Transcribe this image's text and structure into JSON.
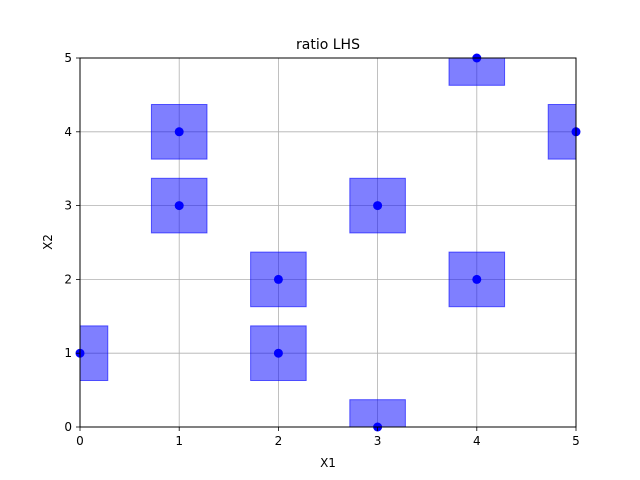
{
  "chart_data": {
    "type": "scatter",
    "title": "ratio LHS",
    "xlabel": "X1",
    "ylabel": "X2",
    "xlim": [
      0,
      5
    ],
    "ylim": [
      0,
      5
    ],
    "xticks": [
      "0",
      "1",
      "2",
      "3",
      "4",
      "5"
    ],
    "yticks": [
      "0",
      "1",
      "2",
      "3",
      "4",
      "5"
    ],
    "grid": true,
    "points": [
      {
        "x": 0,
        "y": 1
      },
      {
        "x": 1,
        "y": 3
      },
      {
        "x": 1,
        "y": 4
      },
      {
        "x": 2,
        "y": 1
      },
      {
        "x": 2,
        "y": 2
      },
      {
        "x": 3,
        "y": 0
      },
      {
        "x": 3,
        "y": 3
      },
      {
        "x": 4,
        "y": 2
      },
      {
        "x": 4,
        "y": 5
      },
      {
        "x": 5,
        "y": 4
      }
    ],
    "box_halfwidth": 0.28,
    "box_halfheight": 0.37,
    "colors": {
      "point": "#0000ff",
      "box_fill": "#0000ff",
      "box_fill_opacity": 0.5,
      "grid": "#b0b0b0",
      "axes": "#000000"
    }
  }
}
